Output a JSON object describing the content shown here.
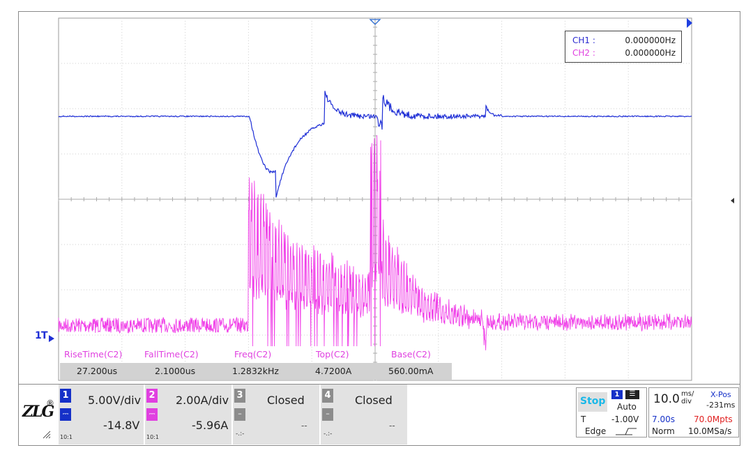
{
  "freq_counter": {
    "rows": [
      {
        "label": "CH1 :",
        "value": "0.000000Hz",
        "color": "#2a2ad0"
      },
      {
        "label": "CH2 :",
        "value": "0.000000Hz",
        "color": "#e040e0"
      }
    ]
  },
  "marker": {
    "ch1_ground": "1",
    "trigger": "T"
  },
  "measurements": [
    {
      "label": "RiseTime(C2)",
      "value": "27.200us"
    },
    {
      "label": "FallTime(C2)",
      "value": "2.1000us"
    },
    {
      "label": "Freq(C2)",
      "value": "1.2832kHz"
    },
    {
      "label": "Top(C2)",
      "value": "4.7200A"
    },
    {
      "label": "Base(C2)",
      "value": "560.00mA"
    }
  ],
  "channels": [
    {
      "num": "1",
      "scale": "5.00V/div",
      "offset": "-14.8V",
      "ratio": "10:1",
      "color": "#1530c8"
    },
    {
      "num": "2",
      "scale": "2.00A/div",
      "offset": "-5.96A",
      "ratio": "10:1",
      "color": "#e040e0"
    },
    {
      "num": "3",
      "scale": "Closed",
      "offset": "--",
      "ratio": "-.:-",
      "color": "#8c8c8c"
    },
    {
      "num": "4",
      "scale": "Closed",
      "offset": "--",
      "ratio": "-.:-",
      "color": "#8c8c8c"
    }
  ],
  "trigger": {
    "run_state": "Stop",
    "source": "1",
    "mode": "Auto",
    "level_label": "T",
    "level": "-1.00V",
    "type": "Edge"
  },
  "timebase": {
    "value": "10.0",
    "unit_top": "ms/",
    "unit_bottom": "div",
    "xpos_label": "X-Pos",
    "xpos": "-231ms",
    "span": "7.00s",
    "memory": "70.0Mpts",
    "acq_mode": "Norm",
    "sample_rate": "10.0MSa/s"
  },
  "colors": {
    "ch1": "#1f2fd6",
    "ch2": "#f040e8",
    "grid": "#c8c8c8",
    "accent": "#1565c0"
  }
}
